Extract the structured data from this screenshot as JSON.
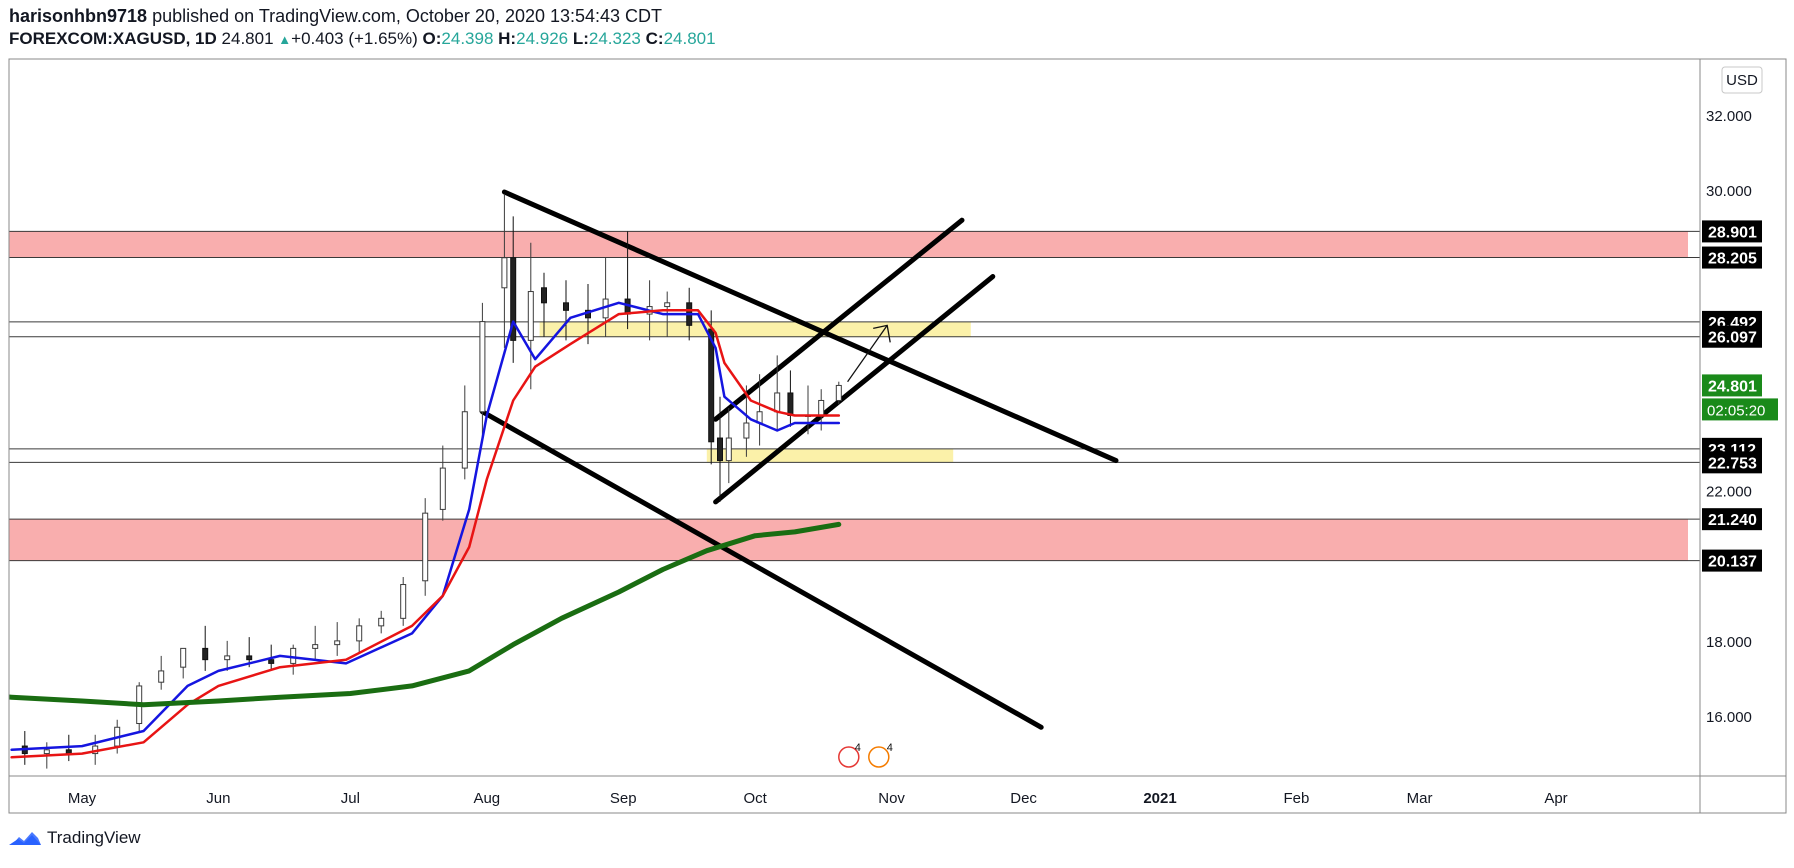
{
  "header": {
    "author": "harisonhbn9718",
    "published": "published on TradingView.com, October 20, 2020 13:54:43 CDT",
    "symbol": "FOREXCOM:XAGUSD, 1D",
    "last": "24.801",
    "change": "+0.403 (+1.65%)",
    "open_label": "O:",
    "open": "24.398",
    "high_label": "H:",
    "high": "24.926",
    "low_label": "L:",
    "low": "24.323",
    "close_label": "C:",
    "close": "24.801"
  },
  "footer": {
    "brand": "TradingView"
  },
  "colors": {
    "ema_fast": "#1515e0",
    "ema_slow": "#e81414",
    "sma_long": "#1a6d12",
    "resistance_zone": "#f9aeae",
    "demand_zone": "#fbf0a0",
    "price_badge": "#1a8a1a"
  },
  "chart_data": {
    "type": "line",
    "title": "",
    "currency": "USD",
    "xlabel": "",
    "ylabel": "",
    "ylim": [
      14.4,
      33.2
    ],
    "grid": false,
    "x_ticks": [
      "May",
      "Jun",
      "Jul",
      "Aug",
      "Sep",
      "Oct",
      "Nov",
      "Dec",
      "2021",
      "Feb",
      "Mar",
      "Apr"
    ],
    "x_tick_dates": [
      "2020-05-01",
      "2020-06-01",
      "2020-07-01",
      "2020-08-01",
      "2020-09-01",
      "2020-10-01",
      "2020-11-01",
      "2020-12-01",
      "2021-01-01",
      "2021-02-01",
      "2021-03-01",
      "2021-04-01"
    ],
    "y_ticks": [
      16,
      18,
      20,
      22,
      24,
      26,
      28,
      30,
      32
    ],
    "y_tick_labels": [
      "16.000",
      "18.000",
      "",
      "22.000",
      "",
      "",
      "",
      "30.000",
      "32.000"
    ],
    "series": [
      {
        "kind": "ema_fast",
        "x": [
          "2020-04-15",
          "2020-05-01",
          "2020-05-15",
          "2020-05-25",
          "2020-06-01",
          "2020-06-15",
          "2020-06-30",
          "2020-07-15",
          "2020-07-22",
          "2020-07-28",
          "2020-08-01",
          "2020-08-07",
          "2020-08-12",
          "2020-08-20",
          "2020-08-31",
          "2020-09-10",
          "2020-09-18",
          "2020-09-22",
          "2020-09-24",
          "2020-09-30",
          "2020-10-06",
          "2020-10-10",
          "2020-10-20"
        ],
        "values": [
          15.1,
          15.2,
          15.6,
          16.8,
          17.2,
          17.6,
          17.4,
          18.2,
          19.2,
          21.5,
          24.0,
          26.5,
          25.5,
          26.6,
          27.0,
          26.7,
          26.7,
          25.8,
          24.5,
          23.9,
          23.6,
          23.8,
          23.8
        ]
      },
      {
        "kind": "ema_slow",
        "x": [
          "2020-04-15",
          "2020-05-01",
          "2020-05-15",
          "2020-05-25",
          "2020-06-01",
          "2020-06-15",
          "2020-06-30",
          "2020-07-15",
          "2020-07-22",
          "2020-07-28",
          "2020-08-01",
          "2020-08-07",
          "2020-08-12",
          "2020-08-20",
          "2020-08-31",
          "2020-09-10",
          "2020-09-18",
          "2020-09-22",
          "2020-09-24",
          "2020-09-30",
          "2020-10-06",
          "2020-10-10",
          "2020-10-20"
        ],
        "values": [
          14.9,
          15.0,
          15.3,
          16.3,
          16.8,
          17.3,
          17.5,
          18.4,
          19.2,
          20.5,
          22.3,
          24.4,
          25.3,
          25.9,
          26.7,
          26.8,
          26.8,
          26.2,
          25.4,
          24.4,
          24.1,
          24.0,
          24.0
        ]
      },
      {
        "kind": "sma_long",
        "x": [
          "2020-04-01",
          "2020-04-15",
          "2020-05-01",
          "2020-05-15",
          "2020-06-01",
          "2020-06-15",
          "2020-07-01",
          "2020-07-15",
          "2020-07-28",
          "2020-08-07",
          "2020-08-18",
          "2020-08-31",
          "2020-09-10",
          "2020-09-20",
          "2020-10-01",
          "2020-10-10",
          "2020-10-20"
        ],
        "values": [
          16.6,
          16.5,
          16.4,
          16.3,
          16.4,
          16.5,
          16.6,
          16.8,
          17.2,
          17.9,
          18.6,
          19.3,
          19.9,
          20.4,
          20.8,
          20.9,
          21.1
        ]
      }
    ],
    "candles": {
      "x": [
        "2020-04-13",
        "2020-04-18",
        "2020-04-23",
        "2020-04-28",
        "2020-05-04",
        "2020-05-09",
        "2020-05-14",
        "2020-05-19",
        "2020-05-24",
        "2020-05-29",
        "2020-06-03",
        "2020-06-08",
        "2020-06-13",
        "2020-06-18",
        "2020-06-23",
        "2020-06-28",
        "2020-07-03",
        "2020-07-08",
        "2020-07-13",
        "2020-07-18",
        "2020-07-22",
        "2020-07-27",
        "2020-07-31",
        "2020-08-05",
        "2020-08-07",
        "2020-08-11",
        "2020-08-14",
        "2020-08-19",
        "2020-08-24",
        "2020-08-28",
        "2020-09-02",
        "2020-09-07",
        "2020-09-11",
        "2020-09-16",
        "2020-09-21",
        "2020-09-23",
        "2020-09-25",
        "2020-09-29",
        "2020-10-02",
        "2020-10-06",
        "2020-10-09",
        "2020-10-13",
        "2020-10-16",
        "2020-10-20"
      ],
      "open": [
        15.1,
        15.2,
        15.0,
        15.1,
        15.0,
        15.2,
        15.8,
        16.9,
        17.3,
        17.8,
        17.5,
        17.6,
        17.5,
        17.4,
        17.8,
        17.9,
        18.0,
        18.4,
        18.6,
        19.6,
        21.5,
        22.6,
        24.1,
        27.4,
        28.2,
        26.0,
        27.4,
        27.0,
        26.8,
        26.6,
        27.1,
        26.7,
        26.9,
        27.0,
        26.3,
        23.4,
        22.8,
        23.4,
        23.8,
        24.1,
        24.6,
        24.0,
        24.0,
        24.4
      ],
      "high": [
        15.8,
        15.6,
        15.3,
        15.5,
        15.5,
        15.9,
        16.9,
        17.6,
        17.8,
        18.4,
        18.0,
        18.1,
        17.9,
        17.9,
        18.4,
        18.5,
        18.6,
        18.8,
        19.7,
        21.8,
        23.2,
        24.8,
        27.0,
        29.9,
        29.3,
        28.6,
        27.8,
        27.6,
        27.5,
        28.2,
        28.9,
        27.6,
        27.3,
        27.4,
        26.8,
        24.5,
        24.2,
        24.8,
        25.1,
        25.6,
        25.2,
        24.8,
        24.7,
        24.9
      ],
      "low": [
        14.6,
        14.7,
        14.6,
        14.8,
        14.7,
        15.0,
        15.6,
        16.7,
        17.0,
        17.2,
        17.2,
        17.3,
        17.2,
        17.1,
        17.5,
        17.6,
        17.7,
        18.2,
        18.4,
        19.2,
        21.2,
        22.3,
        23.4,
        25.8,
        25.4,
        24.7,
        26.1,
        26.0,
        25.9,
        26.1,
        26.3,
        26.0,
        26.1,
        26.0,
        22.7,
        21.7,
        22.2,
        22.9,
        23.2,
        23.6,
        23.7,
        23.5,
        23.6,
        24.3
      ],
      "close": [
        15.2,
        15.0,
        15.1,
        15.0,
        15.2,
        15.7,
        16.8,
        17.2,
        17.8,
        17.5,
        17.6,
        17.5,
        17.4,
        17.8,
        17.9,
        18.0,
        18.4,
        18.6,
        19.5,
        21.4,
        22.6,
        24.1,
        26.5,
        28.2,
        26.0,
        27.3,
        27.0,
        26.8,
        26.6,
        27.1,
        26.7,
        26.9,
        27.0,
        26.4,
        23.3,
        22.8,
        23.4,
        23.8,
        24.1,
        24.6,
        24.0,
        24.0,
        24.4,
        24.8
      ]
    },
    "price_levels": [
      {
        "value": 28.901,
        "label": "28.901"
      },
      {
        "value": 28.205,
        "label": "28.205"
      },
      {
        "value": 26.492,
        "label": "26.492"
      },
      {
        "value": 26.097,
        "label": "26.097"
      },
      {
        "value": 23.112,
        "label": "23.112"
      },
      {
        "value": 22.753,
        "label": "22.753"
      },
      {
        "value": 21.24,
        "label": "21.240"
      },
      {
        "value": 20.137,
        "label": "20.137"
      }
    ],
    "last_price": {
      "value": 24.801,
      "label": "24.801",
      "countdown": "02:05:20"
    },
    "zones": [
      {
        "kind": "resistance",
        "y1": 28.205,
        "y2": 28.901,
        "x1": "2020-04-01",
        "x2": "2021-05-01"
      },
      {
        "kind": "support",
        "y1": 20.137,
        "y2": 21.24,
        "x1": "2020-04-01",
        "x2": "2021-05-01"
      },
      {
        "kind": "demand",
        "y1": 26.097,
        "y2": 26.492,
        "x1": "2020-08-13",
        "x2": "2020-11-19"
      },
      {
        "kind": "demand",
        "y1": 22.753,
        "y2": 23.112,
        "x1": "2020-09-20",
        "x2": "2020-11-15"
      }
    ],
    "trendlines": [
      {
        "x1": "2020-08-05",
        "y1": 29.95,
        "x2": "2020-12-22",
        "y2": 22.8
      },
      {
        "x1": "2020-07-31",
        "y1": 24.1,
        "x2": "2020-12-05",
        "y2": 15.7
      },
      {
        "x1": "2020-09-22",
        "y1": 23.9,
        "x2": "2020-11-17",
        "y2": 29.2
      },
      {
        "x1": "2020-09-22",
        "y1": 21.7,
        "x2": "2020-11-24",
        "y2": 27.7
      }
    ],
    "arrow": {
      "x1": "2020-10-22",
      "y1": 24.9,
      "x2": "2020-10-31",
      "y2": 26.4
    },
    "events": {
      "label1": "4",
      "label2": "4"
    }
  }
}
